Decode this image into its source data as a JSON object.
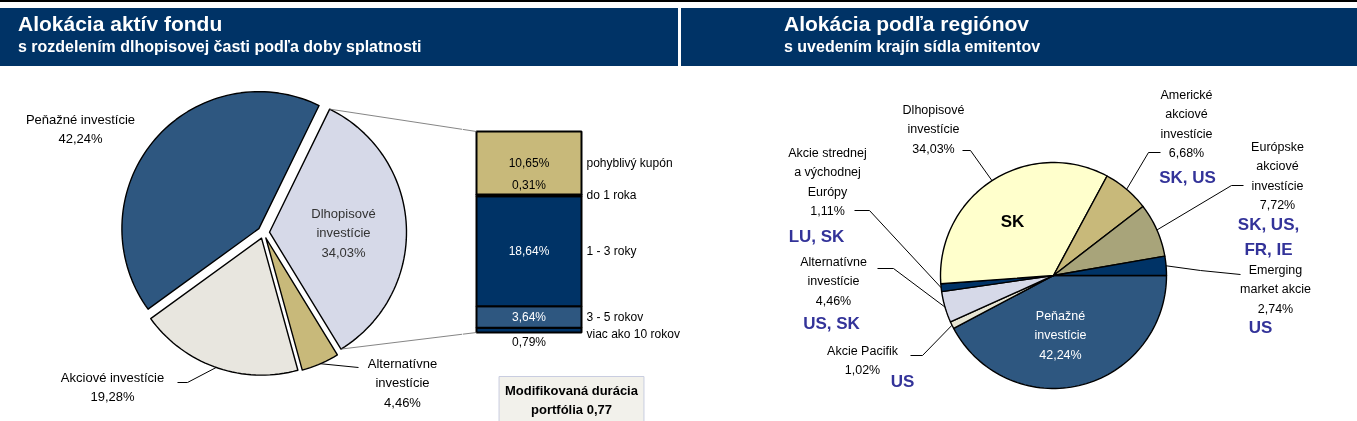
{
  "chart_data": [
    {
      "type": "pie",
      "title": "Alokácia aktív fondu",
      "subtitle": "s rozdelením dlhopisovej časti podľa doby splatnosti",
      "categories": [
        "Peňažné investície",
        "Dlhopisové investície",
        "Alternatívne investície",
        "Akciové investície"
      ],
      "values": [
        42.24,
        34.03,
        4.46,
        19.28
      ],
      "colors": [
        "#2e5780",
        "#d6d9e8",
        "#c8b97a",
        "#e8e6df"
      ],
      "value_labels": [
        "42,24%",
        "34,03%",
        "4,46%",
        "19,28%"
      ]
    },
    {
      "type": "bar",
      "stacked": true,
      "categories": [
        null
      ],
      "series": [
        {
          "name": "viac ako 10 rokov",
          "color": "#003366",
          "values": [
            0.79
          ],
          "value_labels": [
            "0,79%"
          ]
        },
        {
          "name": "3 - 5 rokov",
          "color": "#2e5780",
          "values": [
            3.64
          ],
          "value_labels": [
            "3,64%"
          ]
        },
        {
          "name": "1 - 3 roky",
          "color": "#003366",
          "values": [
            18.64
          ],
          "value_labels": [
            "18,64%"
          ]
        },
        {
          "name": "do 1 roka",
          "color": "#003366",
          "values": [
            0.31
          ],
          "value_labels": [
            "0,31%"
          ]
        },
        {
          "name": "pohyblivý kupón",
          "color": "#c8b97a",
          "values": [
            10.65
          ],
          "value_labels": [
            "10,65%"
          ]
        }
      ],
      "annotations": [
        "Modifikovaná durácia portfólia 0,77"
      ]
    },
    {
      "type": "pie",
      "title": "Alokácia podľa regiónov",
      "subtitle": "s uvedením krajín sídla emitentov",
      "categories": [
        "Peňažné investície",
        "Akcie Pacifik",
        "Alternatívne investície",
        "Akcie strednej a východnej Európy",
        "Dlhopisové investície",
        "Americké akciové investície",
        "Európske akciové investície",
        "Emerging market akcie"
      ],
      "values": [
        42.24,
        1.02,
        4.46,
        1.11,
        34.03,
        6.68,
        7.72,
        2.74
      ],
      "colors": [
        "#2e5780",
        "#e8e6d4",
        "#d6d9e8",
        "#003366",
        "#ffffcc",
        "#c8b97a",
        "#a8a47a",
        "#003366"
      ],
      "value_labels": [
        "42,24%",
        "1,02%",
        "4,46%",
        "1,11%",
        "34,03%",
        "6,68%",
        "7,72%",
        "2,74%"
      ],
      "annotations": [
        "US",
        "US, SK",
        "LU, SK",
        "SK",
        "SK, US",
        "SK, US, FR, IE",
        "US"
      ]
    }
  ]
}
